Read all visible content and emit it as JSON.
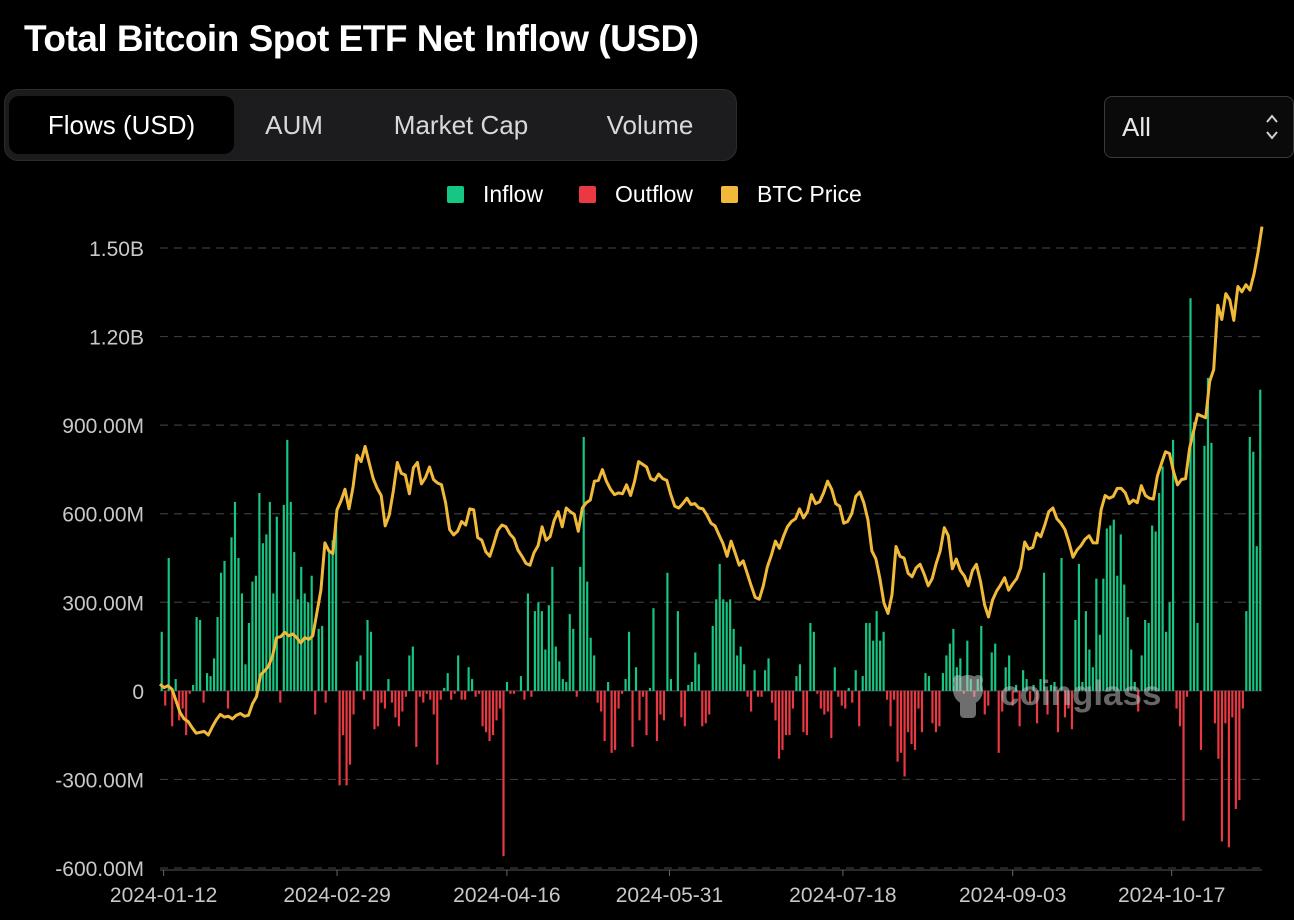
{
  "page": {
    "title": "Total Bitcoin Spot ETF Net Inflow (USD)"
  },
  "tabs": [
    {
      "label": "Flows (USD)",
      "active": true
    },
    {
      "label": "AUM",
      "active": false
    },
    {
      "label": "Market Cap",
      "active": false
    },
    {
      "label": "Volume",
      "active": false
    }
  ],
  "range_select": {
    "value": "All"
  },
  "legend": [
    {
      "label": "Inflow",
      "color": "#16c784"
    },
    {
      "label": "Outflow",
      "color": "#ea3943"
    },
    {
      "label": "BTC Price",
      "color": "#f0b93a"
    }
  ],
  "watermark": {
    "text": "coinglass"
  },
  "chart_data": {
    "type": "bar",
    "title": "Total Bitcoin Spot ETF Net Inflow (USD)",
    "units": "USD",
    "y_ticks": [
      "1.50B",
      "1.20B",
      "900.00M",
      "600.00M",
      "300.00M",
      "0",
      "-300.00M",
      "-600.00M"
    ],
    "y_tick_values": [
      1500,
      1200,
      900,
      600,
      300,
      0,
      -300,
      -600
    ],
    "ylim": [
      -600,
      1500
    ],
    "x_ticks": [
      "2024-01-12",
      "2024-02-29",
      "2024-04-16",
      "2024-05-31",
      "2024-07-18",
      "2024-09-03",
      "2024-10-17"
    ],
    "x_range": [
      "2024-01-11",
      "2024-11-11"
    ],
    "grid": "horizontal dashed",
    "legend_position": "top-center",
    "series": [
      {
        "name": "Net Inflow",
        "kind": "bar",
        "note_units": "USD millions, one value per trading day",
        "values": [
          200,
          -50,
          450,
          -120,
          40,
          -100,
          -60,
          -150,
          -10,
          20,
          250,
          240,
          -40,
          60,
          50,
          110,
          250,
          400,
          440,
          -60,
          520,
          640,
          450,
          330,
          90,
          230,
          370,
          390,
          670,
          500,
          530,
          640,
          330,
          590,
          -40,
          630,
          850,
          640,
          470,
          310,
          420,
          330,
          300,
          390,
          -80,
          210,
          220,
          -40,
          470,
          510,
          560,
          -320,
          -150,
          -320,
          -250,
          -80,
          100,
          120,
          -30,
          240,
          200,
          -130,
          -120,
          -40,
          -60,
          40,
          -40,
          -90,
          -120,
          -70,
          -20,
          120,
          150,
          -190,
          -20,
          -40,
          -10,
          -30,
          -80,
          -250,
          -30,
          10,
          60,
          -30,
          -10,
          120,
          -30,
          -30,
          80,
          40,
          -20,
          -10,
          -120,
          -140,
          -170,
          -150,
          -100,
          -60,
          -560,
          30,
          -10,
          -10,
          0,
          50,
          -30,
          330,
          -20,
          270,
          300,
          270,
          140,
          290,
          420,
          150,
          100,
          40,
          30,
          260,
          210,
          -20,
          420,
          860,
          370,
          180,
          120,
          -40,
          -70,
          -170,
          30,
          -210,
          -200,
          -60,
          -10,
          40,
          200,
          -190,
          80,
          -100,
          -20,
          -150,
          10,
          280,
          -170,
          -80,
          -100,
          400,
          40,
          0,
          270,
          -90,
          -120,
          20,
          30,
          130,
          90,
          -120,
          -110,
          -80,
          220,
          310,
          430,
          310,
          300,
          310,
          210,
          120,
          150,
          90,
          -20,
          -70,
          70,
          -20,
          -20,
          70,
          110,
          -40,
          -100,
          -230,
          -200,
          -150,
          -150,
          -60,
          50,
          90,
          -140,
          -150,
          230,
          200,
          -10,
          -60,
          -80,
          -70,
          -160,
          80,
          -20,
          -50,
          -60,
          10,
          -40,
          70,
          -120,
          50,
          230,
          230,
          170,
          270,
          170,
          200,
          -30,
          -120,
          -30,
          -240,
          -210,
          -290,
          -140,
          -180,
          -200,
          -60,
          -140,
          60,
          50,
          -110,
          -140,
          -120,
          60,
          120,
          160,
          210,
          80,
          110,
          -10,
          170,
          40,
          -20,
          40,
          220,
          -80,
          -50,
          130,
          160,
          -210,
          -70,
          80,
          120,
          -50,
          20,
          -120,
          70,
          40,
          -40,
          20,
          -110,
          40,
          400,
          -80,
          20,
          30,
          -140,
          450,
          -90,
          -60,
          -130,
          240,
          430,
          30,
          270,
          140,
          80,
          380,
          190,
          380,
          550,
          560,
          580,
          390,
          530,
          360,
          250,
          140,
          30,
          -70,
          120,
          240,
          230,
          560,
          540,
          670,
          760,
          200,
          300,
          850,
          -60,
          -120,
          -440,
          -20,
          1330,
          910,
          230,
          -200,
          830,
          1060,
          840,
          -110,
          -230,
          -510,
          -110,
          -530,
          -90,
          -400,
          -370,
          -60,
          270,
          860,
          810,
          490,
          1020
        ]
      },
      {
        "name": "BTC Price",
        "kind": "line",
        "note_units": "USD, plotted against an unlabelled secondary scale",
        "values": [
          46500,
          46100,
          46300,
          45900,
          44600,
          43300,
          42600,
          42300,
          41600,
          41000,
          41100,
          41200,
          40800,
          41700,
          42500,
          43100,
          42800,
          42900,
          42600,
          43000,
          43200,
          42900,
          43000,
          44300,
          45100,
          47500,
          48000,
          48500,
          49700,
          51700,
          51800,
          52300,
          51900,
          52100,
          51700,
          51100,
          51700,
          51500,
          51900,
          54500,
          57000,
          62300,
          61400,
          61100,
          66000,
          67000,
          68300,
          66100,
          68600,
          72100,
          71400,
          73100,
          71300,
          69500,
          68400,
          67600,
          64200,
          65400,
          68100,
          71300,
          70100,
          69900,
          67800,
          70700,
          71300,
          68900,
          69600,
          70800,
          69400,
          69000,
          68800,
          66800,
          63800,
          63200,
          63600,
          64700,
          64300,
          66100,
          66000,
          62900,
          62600,
          61300,
          60800,
          62200,
          63700,
          64300,
          64100,
          63300,
          62800,
          61500,
          60800,
          60000,
          59800,
          61200,
          62000,
          64100,
          62600,
          63000,
          64800,
          65800,
          64100,
          66200,
          65800,
          65500,
          63600,
          66200,
          66800,
          67100,
          69200,
          69300,
          70500,
          69200,
          68300,
          67700,
          67900,
          67800,
          68800,
          67600,
          69200,
          71400,
          71100,
          70800,
          69500,
          69300,
          70000,
          69500,
          69300,
          67700,
          66400,
          66200,
          66700,
          67300,
          66600,
          66700,
          66200,
          66100,
          65400,
          64500,
          64200,
          63200,
          62200,
          60800,
          62500,
          61200,
          59800,
          60300,
          58900,
          57500,
          56200,
          56000,
          57500,
          59600,
          60900,
          62500,
          61700,
          63000,
          64100,
          64700,
          65000,
          66100,
          65100,
          65800,
          67700,
          66700,
          66900,
          67900,
          69200,
          68300,
          66700,
          66400,
          64500,
          64700,
          65600,
          67500,
          68000,
          66800,
          64900,
          61400,
          60500,
          58300,
          55600,
          54400,
          56500,
          61900,
          60800,
          60600,
          58900,
          58500,
          59500,
          59900,
          58800,
          57500,
          58300,
          60000,
          61400,
          64000,
          63100,
          59400,
          60500,
          59200,
          58600,
          57500,
          59200,
          59900,
          58000,
          55400,
          54000,
          55900,
          56900,
          57600,
          58400,
          57000,
          57700,
          58300,
          59500,
          62400,
          61600,
          61800,
          63400,
          63000,
          64300,
          65800,
          66200,
          65000,
          64500,
          63800,
          62400,
          60700,
          61500,
          62000,
          62700,
          63100,
          62300,
          62300,
          66000,
          67600,
          67300,
          67500,
          68400,
          68400,
          67900,
          66700,
          67100,
          66800,
          68700,
          67600,
          67300,
          67200,
          69800,
          71200,
          72500,
          72300,
          70300,
          68800,
          69400,
          69500,
          72900,
          74800,
          76700,
          76500,
          76300,
          80400,
          81700,
          88900,
          87300,
          90200,
          89500,
          87200,
          91000,
          90400,
          91200,
          90600,
          92400,
          94800,
          97700
        ],
        "secondary_axis_ticks_visible": false
      }
    ]
  }
}
